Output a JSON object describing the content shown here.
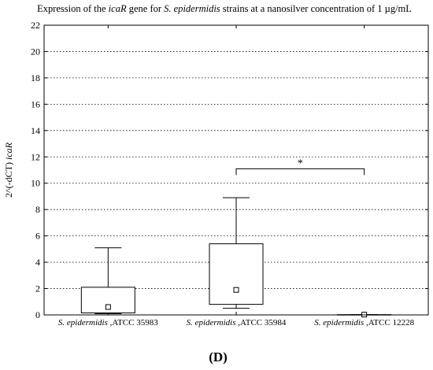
{
  "chart_data": {
    "type": "box",
    "title_parts": [
      {
        "text": "Expression of the ",
        "italic": false
      },
      {
        "text": "icaR",
        "italic": true
      },
      {
        "text": " gene for ",
        "italic": false
      },
      {
        "text": "S. epidermidis",
        "italic": true
      },
      {
        "text": "  strains at a nanosilver concentration of 1 µg/mL",
        "italic": false
      }
    ],
    "ylabel_parts": [
      {
        "text": "2^(-dCT) ",
        "italic": false
      },
      {
        "text": "icaR",
        "italic": true
      }
    ],
    "ylim": [
      0,
      22
    ],
    "yticks": [
      0,
      2,
      4,
      6,
      8,
      10,
      12,
      14,
      16,
      18,
      20,
      22
    ],
    "grid": true,
    "categories": [
      {
        "name": "S. epidermidis",
        "strain": "ATCC 35983"
      },
      {
        "name": "S. epidermidis",
        "strain": "ATCC 35984"
      },
      {
        "name": "S. epidermidis",
        "strain": "ATCC 12228"
      }
    ],
    "boxes": [
      {
        "whisker_low": 0.1,
        "q1": 0.15,
        "median": 0.6,
        "q3": 2.1,
        "whisker_high": 5.1
      },
      {
        "whisker_low": 0.5,
        "q1": 0.8,
        "median": 1.9,
        "q3": 5.4,
        "whisker_high": 8.9
      },
      {
        "whisker_low": 0.0,
        "q1": 0.0,
        "median": 0.02,
        "q3": 0.02,
        "whisker_high": 0.02
      }
    ],
    "significance": {
      "from": 1,
      "to": 2,
      "y": 11.1,
      "label": "*"
    },
    "panel_label": "(D)"
  }
}
